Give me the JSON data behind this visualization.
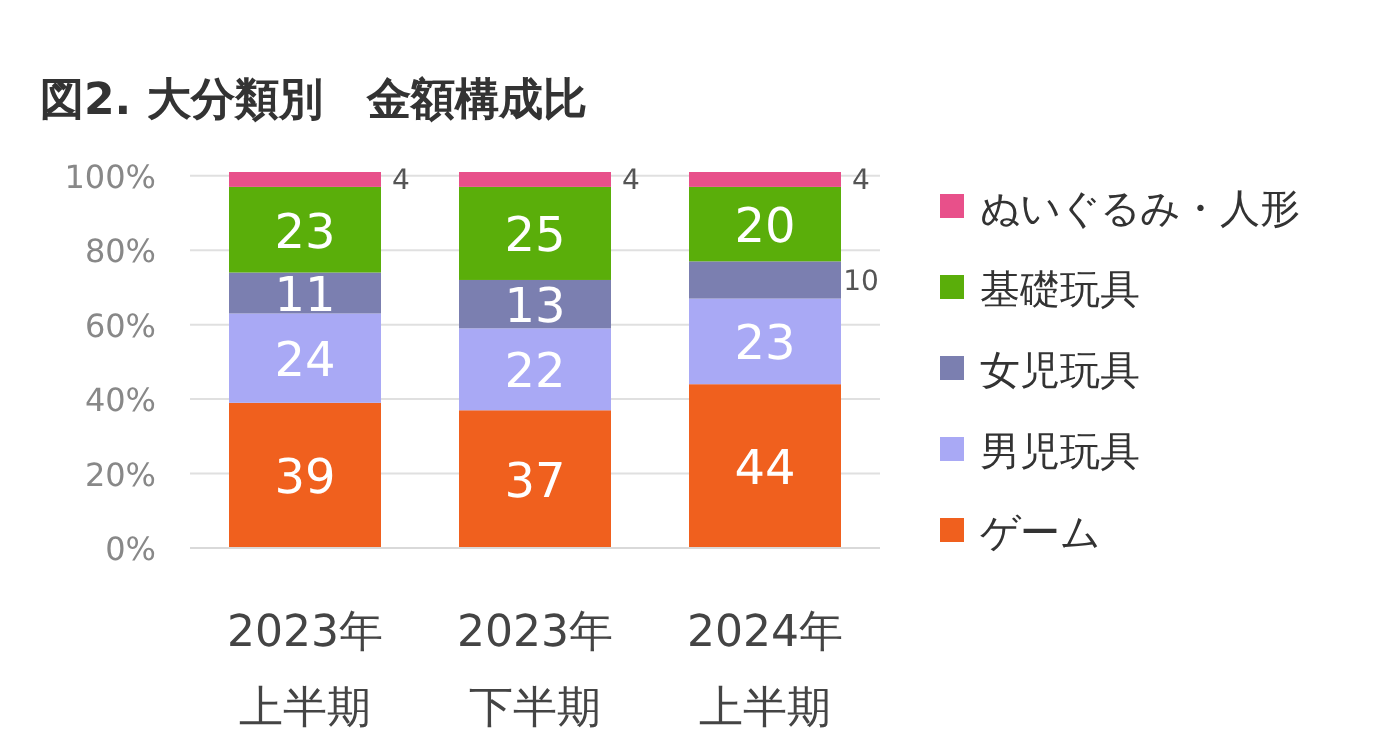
{
  "chart_data": {
    "type": "bar",
    "stacked": true,
    "title": "図2.  大分類別　金額構成比",
    "categories": [
      "2023年上半期",
      "2023年下半期",
      "2024年上半期"
    ],
    "series": [
      {
        "name": "ゲーム",
        "color": "#f0601e",
        "values": [
          39,
          37,
          44
        ]
      },
      {
        "name": "男児玩具",
        "color": "#a9a9f5",
        "values": [
          24,
          22,
          23
        ]
      },
      {
        "name": "女児玩具",
        "color": "#7b7fb0",
        "values": [
          11,
          13,
          10
        ]
      },
      {
        "name": "基礎玩具",
        "color": "#5aae0a",
        "values": [
          23,
          25,
          20
        ]
      },
      {
        "name": "ぬいぐるみ・人形",
        "color": "#e8508a",
        "values": [
          4,
          4,
          4
        ]
      }
    ],
    "ylim": [
      0,
      101
    ],
    "yticks": [
      {
        "value": 0,
        "label": "0%"
      },
      {
        "value": 20,
        "label": "20%"
      },
      {
        "value": 40,
        "label": "40%"
      },
      {
        "value": 60,
        "label": "60%"
      },
      {
        "value": 80,
        "label": "80%"
      },
      {
        "value": 100,
        "label": "100%"
      }
    ],
    "grid": "y",
    "legend": "right",
    "data_labels": true
  }
}
